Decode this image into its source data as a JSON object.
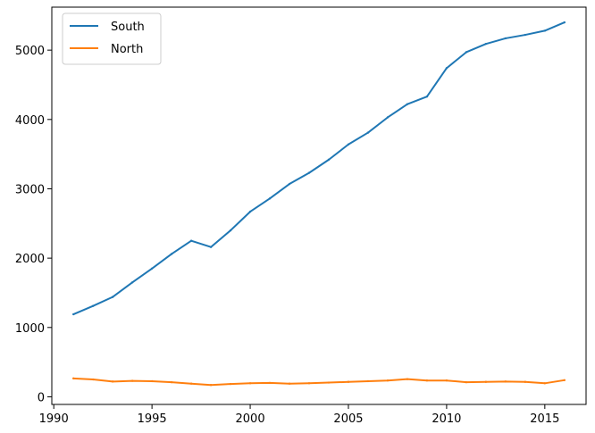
{
  "chart_data": {
    "type": "line",
    "title": "",
    "xlabel": "",
    "ylabel": "",
    "xlim": [
      1989.9,
      2017.1
    ],
    "ylim": [
      -110,
      5620
    ],
    "xticks": [
      1990,
      1995,
      2000,
      2005,
      2010,
      2015
    ],
    "yticks": [
      0,
      1000,
      2000,
      3000,
      4000,
      5000
    ],
    "grid": false,
    "legend_position": "top-left",
    "x": [
      1991,
      1992,
      1993,
      1994,
      1995,
      1996,
      1997,
      1998,
      1999,
      2000,
      2001,
      2002,
      2003,
      2004,
      2005,
      2006,
      2007,
      2008,
      2009,
      2010,
      2011,
      2012,
      2013,
      2014,
      2015,
      2016
    ],
    "series": [
      {
        "name": "South",
        "color": "#1f77b4",
        "values": [
          1190,
          1310,
          1440,
          1650,
          1850,
          2060,
          2250,
          2160,
          2400,
          2670,
          2860,
          3070,
          3230,
          3420,
          3640,
          3810,
          4030,
          4220,
          4330,
          4740,
          4970,
          5090,
          5170,
          5220,
          5280,
          5400
        ]
      },
      {
        "name": "North",
        "color": "#ff7f0e",
        "values": [
          265,
          250,
          220,
          230,
          225,
          210,
          190,
          170,
          185,
          195,
          200,
          190,
          195,
          205,
          215,
          225,
          235,
          255,
          235,
          235,
          210,
          215,
          220,
          215,
          195,
          240
        ]
      }
    ]
  }
}
